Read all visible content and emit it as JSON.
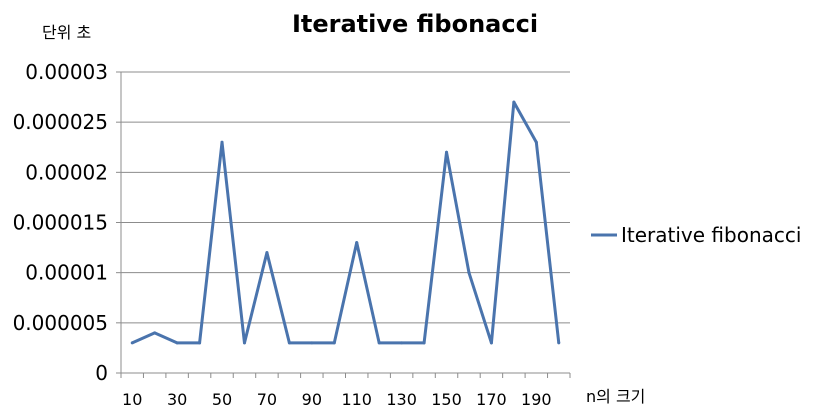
{
  "chart_data": {
    "type": "line",
    "title": "Iterative fibonacci",
    "ylabel": "단위 초",
    "xlabel": "n의 크기",
    "x": [
      10,
      20,
      30,
      40,
      50,
      60,
      70,
      80,
      90,
      100,
      110,
      120,
      130,
      140,
      150,
      160,
      170,
      180,
      190,
      200
    ],
    "x_tick_labels": [
      "10",
      "30",
      "50",
      "70",
      "90",
      "110",
      "130",
      "150",
      "170",
      "190"
    ],
    "y_tick_labels": [
      "0",
      "0.000005",
      "0.00001",
      "0.000015",
      "0.00002",
      "0.000025",
      "0.00003"
    ],
    "ylim": [
      0,
      3e-05
    ],
    "grid": true,
    "legend_position": "right",
    "series": [
      {
        "name": "Iterative fibonacci",
        "color": "#4a74ad",
        "values": [
          3e-06,
          4e-06,
          3e-06,
          3e-06,
          2.3e-05,
          3e-06,
          1.2e-05,
          3e-06,
          3e-06,
          3e-06,
          1.3e-05,
          3e-06,
          3e-06,
          3e-06,
          2.2e-05,
          1e-05,
          3e-06,
          2.7e-05,
          2.3e-05,
          3e-06
        ]
      }
    ]
  }
}
